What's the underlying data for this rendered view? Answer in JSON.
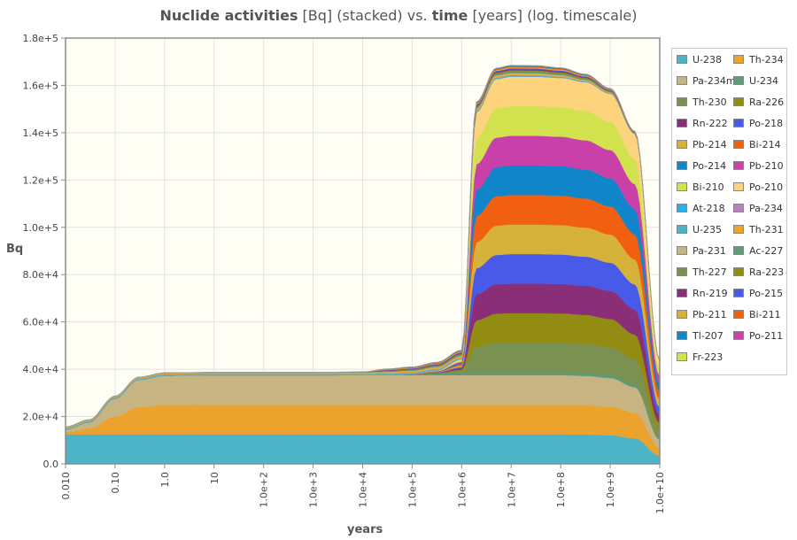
{
  "chart_data": {
    "type": "area",
    "stacked": true,
    "title_parts": [
      {
        "text": "Nuclide activities",
        "bold": true
      },
      {
        "text": " [Bq] (stacked) vs. ",
        "bold": false
      },
      {
        "text": "time",
        "bold": true
      },
      {
        "text": " [years] (log. timescale)",
        "bold": false
      }
    ],
    "xlabel": "years",
    "ylabel": "Bq",
    "x_scale": "log",
    "xlim": [
      0.01,
      10000000000
    ],
    "ylim": [
      0,
      180000
    ],
    "grid": true,
    "legend_position": "right",
    "x_tick_labels": [
      "0.010",
      "0.10",
      "1.0",
      "10",
      "1.0e+2",
      "1.0e+3",
      "1.0e+4",
      "1.0e+5",
      "1.0e+6",
      "1.0e+7",
      "1.0e+8",
      "1.0e+9",
      "1.0e+10"
    ],
    "x_ticks": [
      0.01,
      0.1,
      1,
      10,
      100,
      1000,
      10000,
      100000,
      1000000,
      10000000,
      100000000,
      1000000000,
      10000000000
    ],
    "y_tick_labels": [
      "0.0",
      "2.0e+4",
      "4.0e+4",
      "6.0e+4",
      "8.0e+4",
      "1.0e+5",
      "1.2e+5",
      "1.4e+5",
      "1.6e+5",
      "1.8e+5"
    ],
    "y_ticks": [
      0,
      20000,
      40000,
      60000,
      80000,
      100000,
      120000,
      140000,
      160000,
      180000
    ],
    "x": [
      0.01,
      0.03,
      0.1,
      0.3,
      1,
      10,
      100,
      1000,
      10000,
      31600,
      100000,
      316000,
      1000000,
      2000000,
      5000000,
      10000000,
      31600000,
      100000000,
      316000000,
      1000000000,
      3160000000,
      10000000000
    ],
    "series": [
      {
        "name": "U-238",
        "color": "#4db4c8",
        "values": [
          12500,
          12500,
          12500,
          12500,
          12500,
          12500,
          12500,
          12500,
          12500,
          12500,
          12500,
          12500,
          12500,
          12500,
          12500,
          12500,
          12500,
          12500,
          12400,
          12100,
          10800,
          3400
        ]
      },
      {
        "name": "Th-234",
        "color": "#eba32e",
        "values": [
          1000,
          2500,
          7500,
          11500,
          12400,
          12500,
          12500,
          12500,
          12500,
          12500,
          12500,
          12500,
          12500,
          12500,
          12500,
          12500,
          12500,
          12500,
          12400,
          12100,
          10800,
          3400
        ]
      },
      {
        "name": "Pa-234m",
        "color": "#c8b482",
        "values": [
          1000,
          2500,
          7500,
          11500,
          12400,
          12500,
          12500,
          12500,
          12500,
          12500,
          12500,
          12500,
          12500,
          12500,
          12500,
          12500,
          12500,
          12500,
          12400,
          12100,
          10800,
          3400
        ]
      },
      {
        "name": "U-234",
        "color": "#5b9b78",
        "values": [
          0,
          0,
          0,
          0,
          0,
          0,
          0,
          0,
          30,
          100,
          300,
          700,
          1200,
          1200,
          1200,
          1200,
          1200,
          1200,
          1190,
          1160,
          1040,
          330
        ]
      },
      {
        "name": "Th-230",
        "color": "#7b9152",
        "values": [
          0,
          0,
          0,
          0,
          0,
          0,
          0,
          0,
          0,
          0,
          20,
          130,
          550,
          11000,
          12400,
          12500,
          12500,
          12450,
          12300,
          11900,
          10600,
          3300
        ]
      },
      {
        "name": "Ra-226",
        "color": "#938c12",
        "values": [
          0,
          0,
          0,
          0,
          0,
          0,
          0,
          0,
          0,
          0,
          20,
          130,
          550,
          11000,
          12400,
          12500,
          12500,
          12450,
          12300,
          11900,
          10600,
          3300
        ]
      },
      {
        "name": "Rn-222",
        "color": "#8a2e78",
        "values": [
          0,
          0,
          0,
          0,
          0,
          0,
          0,
          0,
          0,
          0,
          20,
          130,
          550,
          11000,
          12400,
          12500,
          12500,
          12450,
          12300,
          11900,
          10600,
          3300
        ]
      },
      {
        "name": "Po-218",
        "color": "#4a5ae8",
        "values": [
          0,
          0,
          0,
          0,
          0,
          0,
          0,
          0,
          0,
          0,
          20,
          130,
          550,
          11000,
          12400,
          12500,
          12500,
          12450,
          12300,
          11900,
          10600,
          3300
        ]
      },
      {
        "name": "Pb-214",
        "color": "#d6b23a",
        "values": [
          0,
          0,
          0,
          0,
          0,
          0,
          0,
          0,
          0,
          0,
          20,
          130,
          550,
          11000,
          12400,
          12500,
          12500,
          12450,
          12300,
          11900,
          10600,
          3300
        ]
      },
      {
        "name": "Bi-214",
        "color": "#f06010",
        "values": [
          0,
          0,
          0,
          0,
          0,
          0,
          0,
          0,
          0,
          0,
          20,
          130,
          550,
          11000,
          12400,
          12500,
          12500,
          12450,
          12300,
          11900,
          10600,
          3300
        ]
      },
      {
        "name": "Po-214",
        "color": "#1185ca",
        "values": [
          0,
          0,
          0,
          0,
          0,
          0,
          0,
          0,
          0,
          0,
          20,
          130,
          550,
          11000,
          12400,
          12500,
          12500,
          12450,
          12300,
          11900,
          10600,
          3300
        ]
      },
      {
        "name": "Pb-210",
        "color": "#c840a8",
        "values": [
          0,
          0,
          0,
          0,
          0,
          0,
          0,
          0,
          0,
          0,
          20,
          130,
          550,
          11000,
          12400,
          12500,
          12500,
          12450,
          12300,
          11900,
          10600,
          3300
        ]
      },
      {
        "name": "Bi-210",
        "color": "#d2e24e",
        "values": [
          0,
          0,
          0,
          0,
          0,
          0,
          0,
          0,
          0,
          0,
          20,
          130,
          550,
          11000,
          12400,
          12500,
          12500,
          12450,
          12300,
          11900,
          10600,
          3300
        ]
      },
      {
        "name": "Po-210",
        "color": "#fdd37d",
        "values": [
          0,
          0,
          0,
          0,
          0,
          0,
          0,
          0,
          0,
          0,
          20,
          130,
          550,
          11000,
          12400,
          12500,
          12500,
          12450,
          12300,
          11900,
          10600,
          3300
        ]
      },
      {
        "name": "At-218",
        "color": "#25b2ea",
        "values": [
          0,
          0,
          0,
          0,
          0,
          0,
          0,
          0,
          0,
          0,
          0,
          0,
          0,
          0,
          2,
          2,
          2,
          2,
          2,
          2,
          2,
          1
        ]
      },
      {
        "name": "Pa-234",
        "color": "#b882bd",
        "values": [
          0,
          0,
          0,
          0,
          0,
          0,
          0,
          0,
          0,
          0,
          0,
          0,
          0,
          0,
          19,
          19,
          19,
          19,
          19,
          18,
          17,
          5
        ]
      },
      {
        "name": "U-235",
        "color": "#4db4c8",
        "values": [
          580,
          580,
          580,
          580,
          580,
          580,
          580,
          580,
          580,
          580,
          580,
          580,
          570,
          570,
          570,
          550,
          500,
          380,
          300,
          200,
          100,
          10
        ]
      },
      {
        "name": "Th-231",
        "color": "#eba32e",
        "values": [
          520,
          560,
          580,
          580,
          580,
          580,
          580,
          580,
          580,
          580,
          580,
          580,
          570,
          570,
          570,
          550,
          500,
          380,
          300,
          200,
          100,
          10
        ]
      },
      {
        "name": "Pa-231",
        "color": "#c8b482",
        "values": [
          0,
          0,
          0,
          0,
          0,
          0,
          0,
          0,
          20,
          150,
          200,
          250,
          300,
          350,
          380,
          400,
          400,
          380,
          300,
          200,
          100,
          10
        ]
      },
      {
        "name": "Ac-227",
        "color": "#5b9b78",
        "values": [
          0,
          0,
          0,
          0,
          0,
          0,
          0,
          0,
          20,
          150,
          200,
          250,
          300,
          350,
          380,
          400,
          400,
          380,
          300,
          200,
          100,
          10
        ]
      },
      {
        "name": "Th-227",
        "color": "#7b9152",
        "values": [
          0,
          0,
          0,
          0,
          0,
          0,
          0,
          0,
          20,
          150,
          200,
          250,
          300,
          350,
          380,
          400,
          400,
          380,
          300,
          200,
          100,
          10
        ]
      },
      {
        "name": "Ra-223",
        "color": "#938c12",
        "values": [
          0,
          0,
          0,
          0,
          0,
          0,
          0,
          0,
          20,
          150,
          200,
          250,
          300,
          350,
          380,
          400,
          400,
          380,
          300,
          200,
          100,
          10
        ]
      },
      {
        "name": "Rn-219",
        "color": "#8a2e78",
        "values": [
          0,
          0,
          0,
          0,
          0,
          0,
          0,
          0,
          20,
          150,
          200,
          250,
          300,
          350,
          380,
          400,
          400,
          380,
          300,
          200,
          100,
          10
        ]
      },
      {
        "name": "Po-215",
        "color": "#4a5ae8",
        "values": [
          0,
          0,
          0,
          0,
          0,
          0,
          0,
          0,
          20,
          150,
          200,
          250,
          300,
          350,
          380,
          400,
          400,
          380,
          300,
          200,
          100,
          10
        ]
      },
      {
        "name": "Pb-211",
        "color": "#d6b23a",
        "values": [
          0,
          0,
          0,
          0,
          0,
          0,
          0,
          0,
          20,
          150,
          200,
          250,
          300,
          350,
          380,
          400,
          400,
          380,
          300,
          200,
          100,
          10
        ]
      },
      {
        "name": "Bi-211",
        "color": "#f06010",
        "values": [
          0,
          0,
          0,
          0,
          0,
          0,
          0,
          0,
          20,
          150,
          200,
          250,
          300,
          350,
          380,
          400,
          400,
          380,
          300,
          200,
          100,
          10
        ]
      },
      {
        "name": "Tl-207",
        "color": "#1185ca",
        "values": [
          0,
          0,
          0,
          0,
          0,
          0,
          0,
          0,
          20,
          150,
          200,
          250,
          300,
          350,
          380,
          400,
          400,
          380,
          300,
          200,
          100,
          10
        ]
      },
      {
        "name": "Po-211",
        "color": "#c840a8",
        "values": [
          0,
          0,
          0,
          0,
          0,
          0,
          0,
          0,
          0,
          0,
          1,
          1,
          1,
          1,
          1,
          1,
          1,
          1,
          1,
          1,
          0,
          0
        ]
      },
      {
        "name": "Fr-223",
        "color": "#d2e24e",
        "values": [
          0,
          0,
          0,
          0,
          0,
          0,
          0,
          0,
          0,
          2,
          3,
          3,
          4,
          5,
          5,
          5,
          5,
          5,
          4,
          3,
          1,
          0
        ]
      }
    ]
  }
}
